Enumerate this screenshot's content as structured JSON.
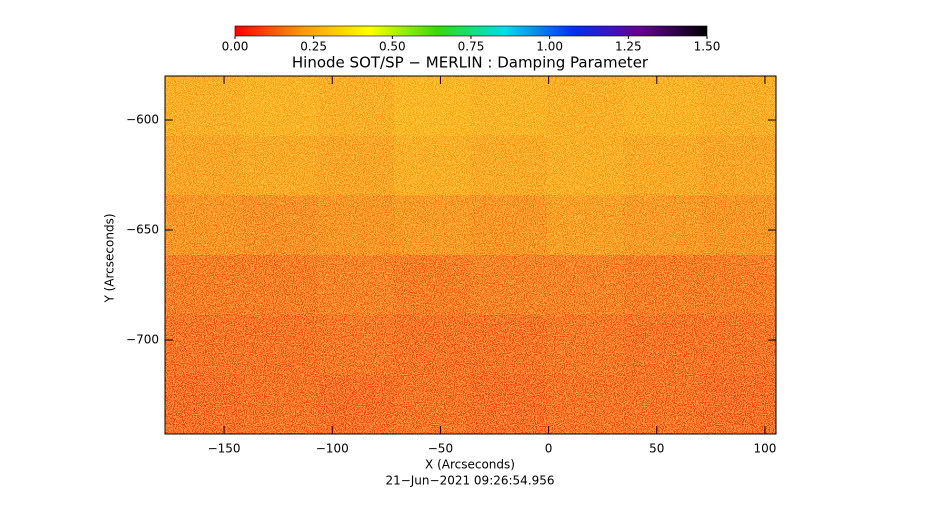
{
  "chart_data": {
    "type": "heatmap",
    "title": "Hinode SOT/SP − MERLIN : Damping Parameter",
    "x_label": "X (Arcseconds)",
    "y_label": "Y (Arcseconds)",
    "footer": "21−Jun−2021 09:26:54.956",
    "xlim": [
      -177.3,
      105.1
    ],
    "ylim": [
      -742.7,
      -580
    ],
    "xticks": [
      {
        "value": -150,
        "label": "−150"
      },
      {
        "value": -100,
        "label": "−100"
      },
      {
        "value": -50,
        "label": "−50"
      },
      0,
      50,
      100
    ],
    "yticks": [
      {
        "value": -600,
        "label": "−600"
      },
      {
        "value": -650,
        "label": "−650"
      },
      {
        "value": -700,
        "label": "−700"
      }
    ],
    "z": [
      [
        0.2,
        0.21,
        0.2,
        0.22,
        0.21,
        0.2,
        0.21,
        0.2
      ],
      [
        0.18,
        0.19,
        0.18,
        0.2,
        0.19,
        0.2,
        0.19,
        0.18
      ],
      [
        0.15,
        0.14,
        0.15,
        0.16,
        0.15,
        0.17,
        0.16,
        0.15
      ],
      [
        0.1,
        0.1,
        0.11,
        0.1,
        0.11,
        0.11,
        0.1,
        0.1
      ],
      [
        0.08,
        0.08,
        0.09,
        0.08,
        0.08,
        0.09,
        0.08,
        0.08
      ],
      [
        0.07,
        0.08,
        0.07,
        0.08,
        0.07,
        0.08,
        0.08,
        0.07
      ]
    ],
    "colorbar": {
      "lim": [
        0,
        1.5
      ],
      "ticks": [
        {
          "value": 0,
          "label": "0.00"
        },
        {
          "value": 0.25,
          "label": "0.25"
        },
        {
          "value": 0.5,
          "label": "0.50"
        },
        {
          "value": 0.75,
          "label": "0.75"
        },
        {
          "value": 1,
          "label": "1.00"
        },
        {
          "value": 1.25,
          "label": "1.25"
        },
        {
          "value": 1.5,
          "label": "1.50"
        }
      ],
      "colors": [
        "#ff0000",
        "#ff9900",
        "#ffff00",
        "#33dd00",
        "#00ddee",
        "#0033ee",
        "#660099",
        "#000000"
      ]
    }
  }
}
